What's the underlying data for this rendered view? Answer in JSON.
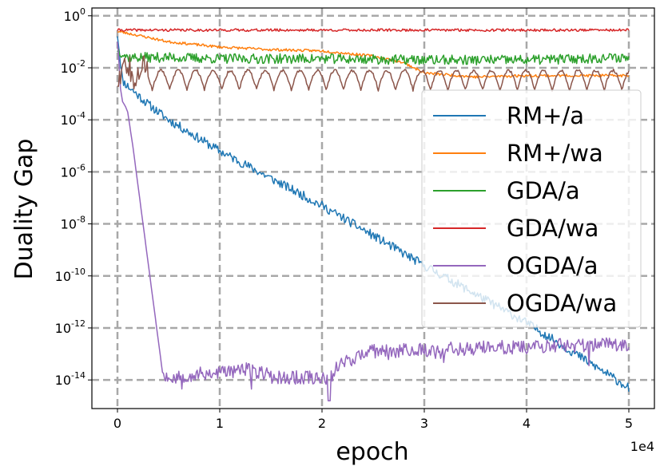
{
  "chart_data": {
    "type": "line",
    "title": "",
    "xlabel": "epoch",
    "ylabel": "Duality Gap",
    "x_scale_label": "1e4",
    "yscale": "log",
    "xlim": [
      -2500,
      52500
    ],
    "ylim_exp": [
      -15.1,
      0.3
    ],
    "grid": true,
    "legend_position": "right",
    "x_ticks": [
      {
        "value": 0,
        "label": "0"
      },
      {
        "value": 10000,
        "label": "1"
      },
      {
        "value": 20000,
        "label": "2"
      },
      {
        "value": 30000,
        "label": "3"
      },
      {
        "value": 40000,
        "label": "4"
      },
      {
        "value": 50000,
        "label": "5"
      }
    ],
    "y_ticks": [
      {
        "exp": 0,
        "base": "10",
        "sup": "0"
      },
      {
        "exp": -2,
        "base": "10",
        "sup": "-2"
      },
      {
        "exp": -4,
        "base": "10",
        "sup": "-4"
      },
      {
        "exp": -6,
        "base": "10",
        "sup": "-6"
      },
      {
        "exp": -8,
        "base": "10",
        "sup": "-8"
      },
      {
        "exp": -10,
        "base": "10",
        "sup": "-10"
      },
      {
        "exp": -12,
        "base": "10",
        "sup": "-12"
      },
      {
        "exp": -14,
        "base": "10",
        "sup": "-14"
      }
    ],
    "series": [
      {
        "name": "RM+/a",
        "color": "#1f77b4",
        "noise": 0.35,
        "seed": 11,
        "x": [
          0,
          500,
          1000,
          3000,
          5000,
          10000,
          20000,
          30000,
          40000,
          50000
        ],
        "log10_y": [
          -0.7,
          -2.5,
          -2.7,
          -3.4,
          -4.0,
          -5.2,
          -7.3,
          -9.6,
          -11.8,
          -14.3
        ]
      },
      {
        "name": "RM+/wa",
        "color": "#ff7f0e",
        "noise": 0.1,
        "seed": 23,
        "x": [
          0,
          2000,
          5000,
          10000,
          15000,
          20000,
          25000,
          28000,
          30000,
          35000,
          40000,
          50000
        ],
        "log10_y": [
          -0.6,
          -0.75,
          -1.0,
          -1.2,
          -1.3,
          -1.35,
          -1.55,
          -1.8,
          -2.2,
          -2.35,
          -2.3,
          -2.3
        ]
      },
      {
        "name": "GDA/a",
        "color": "#2ca02c",
        "noise": 0.38,
        "seed": 37,
        "x": [
          0,
          1000,
          5000,
          10000,
          20000,
          30000,
          40000,
          50000
        ],
        "log10_y": [
          -1.3,
          -1.6,
          -1.6,
          -1.65,
          -1.65,
          -1.7,
          -1.7,
          -1.6
        ]
      },
      {
        "name": "GDA/wa",
        "color": "#d62728",
        "noise": 0.1,
        "seed": 41,
        "x": [
          0,
          50000
        ],
        "log10_y": [
          -0.55,
          -0.55
        ]
      },
      {
        "name": "OGDA/a",
        "color": "#9467bd",
        "noise": 0.0,
        "seed": 53,
        "x": [
          0,
          100,
          300,
          500,
          800,
          1000,
          1500,
          2000,
          2500,
          3000,
          3500,
          4000,
          4400,
          4600,
          5000,
          10000,
          12500,
          15000,
          15400,
          21000,
          21400,
          25000,
          50000
        ],
        "log10_y": [
          -1.0,
          -1.5,
          -2.8,
          -3.3,
          -3.5,
          -3.7,
          -5.0,
          -6.5,
          -8.0,
          -9.5,
          -11.0,
          -12.5,
          -13.7,
          -13.8,
          -13.9,
          -13.7,
          -13.6,
          -13.8,
          -13.9,
          -13.9,
          -13.4,
          -12.9,
          -12.6
        ]
      },
      {
        "name": "OGDA/wa",
        "color": "#8c564b",
        "noise": 0.0,
        "seed": 67,
        "x": [
          0,
          50000
        ],
        "log10_y": [
          -2.3,
          -2.3
        ]
      }
    ],
    "annotations": []
  }
}
